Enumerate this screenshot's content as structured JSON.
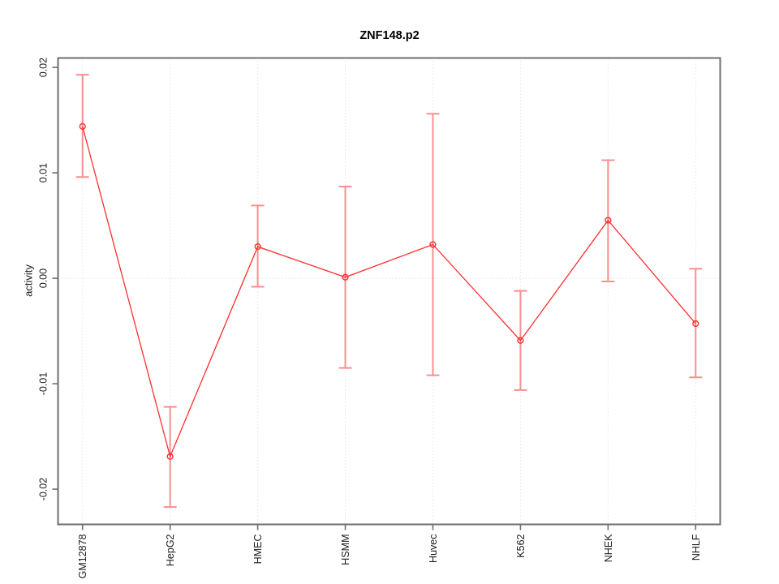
{
  "chart_data": {
    "type": "line",
    "title": "ZNF148.p2",
    "xlabel": "",
    "ylabel": "activity",
    "categories": [
      "GM12878",
      "HepG2",
      "HMEC",
      "HSMM",
      "Huvec",
      "K562",
      "NHEK",
      "NHLF"
    ],
    "series": [
      {
        "name": "activity",
        "values": [
          0.0144,
          -0.0169,
          0.003,
          0.0001,
          0.0032,
          -0.0059,
          0.0055,
          -0.0043
        ],
        "error_low": [
          0.0096,
          -0.0217,
          -0.0008,
          -0.0085,
          -0.0092,
          -0.0106,
          -0.0003,
          -0.0094
        ],
        "error_high": [
          0.0193,
          -0.0122,
          0.0069,
          0.0087,
          0.0156,
          -0.0012,
          0.0112,
          0.0009
        ]
      }
    ],
    "yticks": [
      -0.02,
      -0.01,
      0,
      0.01,
      0.02
    ],
    "ytick_labels": [
      "-0.02",
      "-0.01",
      "0.00",
      "0.01",
      "0.02"
    ],
    "ylim": [
      -0.02334,
      0.02089
    ],
    "grid": "dotted vertical line at each category, dotted horizontal line at zero",
    "zero_line": true,
    "legend": "none",
    "marker": "open-circle",
    "colors": {
      "line": "#ff2e2e",
      "point": "#ff2e2e",
      "error_bar": "#f78f8f",
      "axis_box": "#6e6e6e",
      "tick_label": "#1a1a1a",
      "grid": "#d9d9d9",
      "background": "#ffffff"
    }
  }
}
